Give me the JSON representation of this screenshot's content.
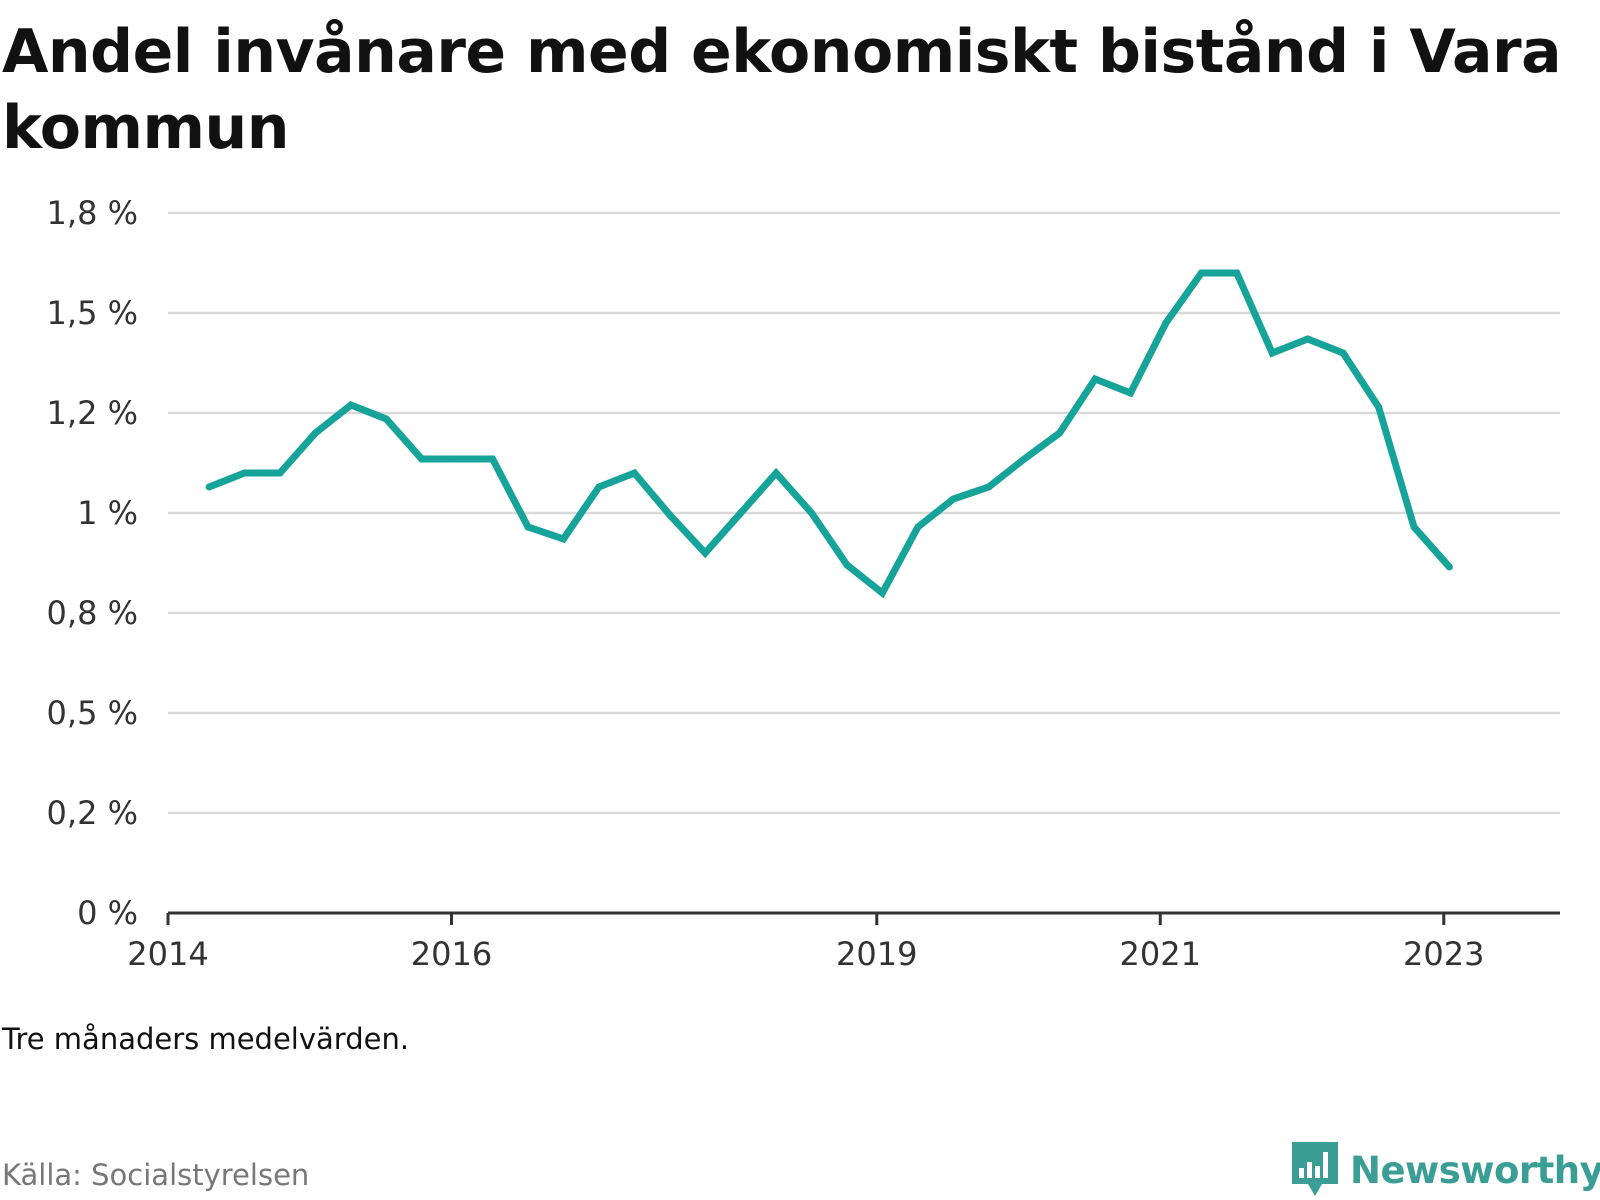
{
  "title": "Andel invånare med ekonomiskt bistånd i Vara kommun",
  "note": "Tre månaders medelvärden.",
  "source": "Källa: Socialstyrelsen",
  "brand": {
    "name": "Newsworthy",
    "icon": "chart-bubble-icon"
  },
  "colors": {
    "line": "#16a39a",
    "brand": "#3b9e96",
    "grid": "#d9d9d9",
    "axis": "#333333"
  },
  "chart_data": {
    "type": "line",
    "title": "Andel invånare med ekonomiskt bistånd i Vara kommun",
    "xlabel": "",
    "ylabel": "",
    "xlim": [
      2014.0,
      2023.82
    ],
    "ylim": [
      0,
      1.75
    ],
    "grid": true,
    "x_ticks": [
      {
        "value": 2014.0,
        "label": "2014"
      },
      {
        "value": 2016.0,
        "label": "2016"
      },
      {
        "value": 2019.0,
        "label": "2019"
      },
      {
        "value": 2021.0,
        "label": "2021"
      },
      {
        "value": 2023.0,
        "label": "2023"
      }
    ],
    "y_ticks": [
      {
        "value": 0,
        "label": "0 %"
      },
      {
        "value": 0.25,
        "label": "0,2 %"
      },
      {
        "value": 0.5,
        "label": "0,5 %"
      },
      {
        "value": 0.75,
        "label": "0,8 %"
      },
      {
        "value": 1.0,
        "label": "1 %"
      },
      {
        "value": 1.25,
        "label": "1,2 %"
      },
      {
        "value": 1.5,
        "label": "1,5 %"
      },
      {
        "value": 1.75,
        "label": "1,8 %"
      }
    ],
    "series": [
      {
        "x": [
          2014.29,
          2014.54,
          2014.79,
          2015.04,
          2015.29,
          2015.54,
          2015.79,
          2016.04,
          2016.29,
          2016.54,
          2016.79,
          2017.04,
          2017.29,
          2017.54,
          2017.79,
          2018.04,
          2018.29,
          2018.54,
          2018.79,
          2019.04,
          2019.29,
          2019.54,
          2019.79,
          2020.04,
          2020.29,
          2020.54,
          2020.79,
          2021.04,
          2021.29,
          2021.54,
          2021.79,
          2022.04,
          2022.29,
          2022.54,
          2022.79,
          2023.04
        ],
        "values": [
          1.065,
          1.1,
          1.1,
          1.2,
          1.27,
          1.235,
          1.135,
          1.135,
          1.135,
          0.965,
          0.935,
          1.065,
          1.1,
          0.995,
          0.9,
          1.0,
          1.1,
          1.0,
          0.87,
          0.8,
          0.965,
          1.035,
          1.065,
          1.135,
          1.2,
          1.335,
          1.3,
          1.475,
          1.6,
          1.6,
          1.4,
          1.435,
          1.4,
          1.265,
          0.965,
          0.865
        ]
      }
    ]
  }
}
